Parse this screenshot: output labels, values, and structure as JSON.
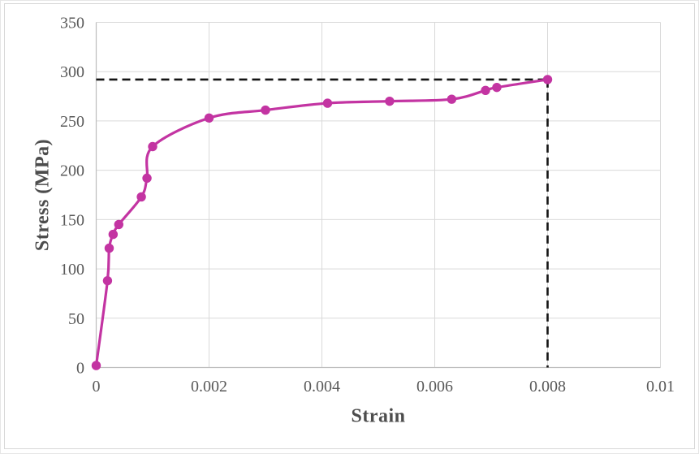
{
  "chart_data": {
    "type": "line",
    "title": "",
    "xlabel": "Strain",
    "ylabel": "Stress (MPa)",
    "xlim": [
      0,
      0.01
    ],
    "ylim": [
      0,
      350
    ],
    "x_ticks": [
      0,
      0.002,
      0.004,
      0.006,
      0.008,
      0.01
    ],
    "x_tick_labels": [
      "0",
      "0.002",
      "0.004",
      "0.006",
      "0.008",
      "0.01"
    ],
    "y_ticks": [
      0,
      50,
      100,
      150,
      200,
      250,
      300,
      350
    ],
    "y_tick_labels": [
      "0",
      "50",
      "100",
      "150",
      "200",
      "250",
      "300",
      "350"
    ],
    "grid": true,
    "legend": false,
    "series": [
      {
        "name": "stress-strain curve",
        "color": "#C334A2",
        "marker": "circle",
        "x": [
          0,
          0.0002,
          0.00023,
          0.0003,
          0.0004,
          0.0008,
          0.0009,
          0.001,
          0.002,
          0.003,
          0.0041,
          0.0052,
          0.0063,
          0.0069,
          0.0071,
          0.008
        ],
        "y": [
          2,
          88,
          121,
          135,
          145,
          173,
          192,
          224,
          253,
          261,
          268,
          270,
          272,
          281,
          284,
          292
        ]
      }
    ],
    "annotations": [
      {
        "name": "ultimate-stress-dashed-line",
        "type": "h-dashed",
        "y": 292,
        "x_from": 0,
        "x_to": 0.008,
        "color": "#141414"
      },
      {
        "name": "failure-strain-dashed-line",
        "type": "v-dashed",
        "x": 0.008,
        "y_from": 0,
        "y_to": 292,
        "color": "#141414"
      }
    ],
    "colors": {
      "background": "#FFFFFF",
      "gridline": "#D9D9D9",
      "axis_line": "#BFBFBF",
      "tick_label": "#595959",
      "axis_title": "#4D4D4D",
      "frame_border": "#D8D8D8"
    }
  }
}
